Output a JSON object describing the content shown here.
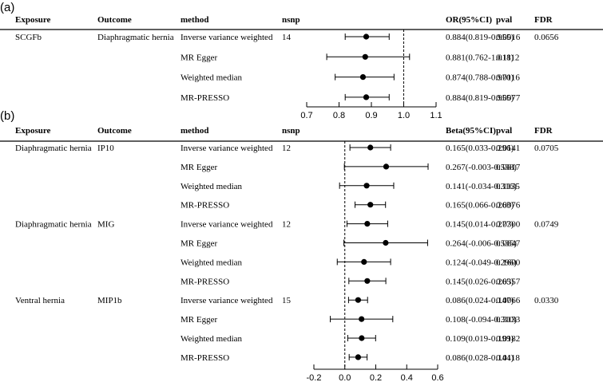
{
  "chart_data": [
    {
      "type": "forest",
      "panel_label": "(a)",
      "columns": {
        "exposure": "Exposure",
        "outcome": "Outcome",
        "method": "method",
        "nsnp": "nsnp",
        "estimate": "OR(95%CI)",
        "pval": "pval",
        "fdr": "FDR"
      },
      "axis": {
        "min": 0.7,
        "max": 1.1,
        "reference": 1.0,
        "ticks": [
          "0.7",
          "0.8",
          "0.9",
          "1.0",
          "1.1"
        ]
      },
      "groups": [
        {
          "exposure": "SCGFb",
          "outcome": "Diaphragmatic hernia",
          "nsnp": "14",
          "fdr": "0.0656",
          "rows": [
            {
              "method": "Inverse variance weighted",
              "est": 0.884,
              "lo": 0.819,
              "hi": 0.955,
              "ci_text": "0.884(0.819-0.955)",
              "pval": "0.0016"
            },
            {
              "method": "MR Egger",
              "est": 0.881,
              "lo": 0.762,
              "hi": 1.018,
              "ci_text": "0.881(0.762-1.018)",
              "pval": "0.1112"
            },
            {
              "method": "Weighted median",
              "est": 0.874,
              "lo": 0.788,
              "hi": 0.97,
              "ci_text": "0.874(0.788-0.970)",
              "pval": "0.0116"
            },
            {
              "method": "MR-PRESSO",
              "est": 0.884,
              "lo": 0.819,
              "hi": 0.955,
              "ci_text": "0.884(0.819-0.955)",
              "pval": "0.0077"
            }
          ]
        }
      ]
    },
    {
      "type": "forest",
      "panel_label": "(b)",
      "columns": {
        "exposure": "Exposure",
        "outcome": "Outcome",
        "method": "method",
        "nsnp": "nsnp",
        "estimate": "Beta(95%CI)",
        "pval": "pval",
        "fdr": "FDR"
      },
      "axis": {
        "min": -0.2,
        "max": 0.6,
        "reference": 0.0,
        "ticks": [
          "-0.2",
          "0.0",
          "0.2",
          "0.4",
          "0.6"
        ]
      },
      "groups": [
        {
          "exposure": "Diaphragmatic hernia",
          "outcome": "IP10",
          "nsnp": "12",
          "fdr": "0.0705",
          "rows": [
            {
              "method": "Inverse variance weighted",
              "est": 0.165,
              "lo": 0.033,
              "hi": 0.296,
              "ci_text": "0.165(0.033-0.296)",
              "pval": "0.0141"
            },
            {
              "method": "MR Egger",
              "est": 0.267,
              "lo": -0.003,
              "hi": 0.538,
              "ci_text": "0.267(-0.003-0.538)",
              "pval": "0.0817"
            },
            {
              "method": "Weighted median",
              "est": 0.141,
              "lo": -0.034,
              "hi": 0.316,
              "ci_text": "0.141(-0.034-0.316)",
              "pval": "0.1135"
            },
            {
              "method": "MR-PRESSO",
              "est": 0.165,
              "lo": 0.066,
              "hi": 0.263,
              "ci_text": "0.165(0.066-0.263)",
              "pval": "0.0076"
            }
          ]
        },
        {
          "exposure": "Diaphragmatic hernia",
          "outcome": "MIG",
          "nsnp": "12",
          "fdr": "0.0749",
          "rows": [
            {
              "method": "Inverse variance weighted",
              "est": 0.145,
              "lo": 0.014,
              "hi": 0.277,
              "ci_text": "0.145(0.014-0.277)",
              "pval": "0.0300"
            },
            {
              "method": "MR Egger",
              "est": 0.264,
              "lo": -0.006,
              "hi": 0.535,
              "ci_text": "0.264(-0.006-0.535)",
              "pval": "0.0847"
            },
            {
              "method": "Weighted median",
              "est": 0.124,
              "lo": -0.049,
              "hi": 0.296,
              "ci_text": "0.124(-0.049-0.296)",
              "pval": "0.1600"
            },
            {
              "method": "MR-PRESSO",
              "est": 0.145,
              "lo": 0.026,
              "hi": 0.265,
              "ci_text": "0.145(0.026-0.265)",
              "pval": "0.0357"
            }
          ]
        },
        {
          "exposure": "Ventral hernia",
          "outcome": "MIP1b",
          "nsnp": "15",
          "fdr": "0.0330",
          "rows": [
            {
              "method": "Inverse variance weighted",
              "est": 0.086,
              "lo": 0.024,
              "hi": 0.147,
              "ci_text": "0.086(0.024-0.147)",
              "pval": "0.0066"
            },
            {
              "method": "MR Egger",
              "est": 0.108,
              "lo": -0.094,
              "hi": 0.31,
              "ci_text": "0.108(-0.094-0.310)",
              "pval": "0.3133"
            },
            {
              "method": "Weighted median",
              "est": 0.109,
              "lo": 0.019,
              "hi": 0.199,
              "ci_text": "0.109(0.019-0.199)",
              "pval": "0.0182"
            },
            {
              "method": "MR-PRESSO",
              "est": 0.086,
              "lo": 0.028,
              "hi": 0.144,
              "ci_text": "0.086(0.028-0.144)",
              "pval": "0.0118"
            }
          ]
        }
      ]
    }
  ]
}
